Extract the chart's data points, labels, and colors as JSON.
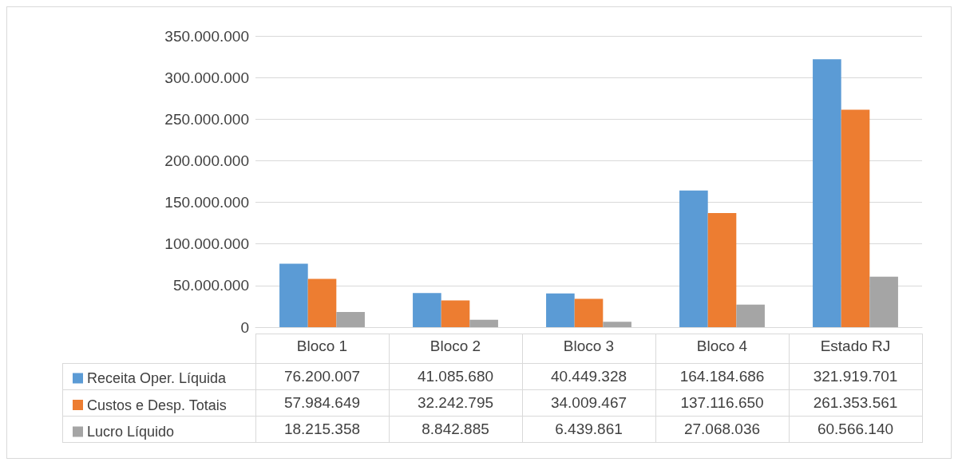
{
  "chart_data": {
    "type": "bar",
    "categories": [
      "Bloco 1",
      "Bloco 2",
      "Bloco 3",
      "Bloco 4",
      "Estado RJ"
    ],
    "series": [
      {
        "name": "Receita Oper. Líquida",
        "color": "#5b9bd5",
        "values": [
          76200007,
          41085680,
          40449328,
          164184686,
          321919701
        ],
        "value_labels": [
          "76.200.007",
          "41.085.680",
          "40.449.328",
          "164.184.686",
          "321.919.701"
        ]
      },
      {
        "name": "Custos e Desp. Totais",
        "color": "#ed7d31",
        "values": [
          57984649,
          32242795,
          34009467,
          137116650,
          261353561
        ],
        "value_labels": [
          "57.984.649",
          "32.242.795",
          "34.009.467",
          "137.116.650",
          "261.353.561"
        ]
      },
      {
        "name": "Lucro Líquido",
        "color": "#a5a5a5",
        "values": [
          18215358,
          8842885,
          6439861,
          27068036,
          60566140
        ],
        "value_labels": [
          "18.215.358",
          "8.842.885",
          "6.439.861",
          "27.068.036",
          "60.566.140"
        ]
      }
    ],
    "ylim": [
      0,
      350000000
    ],
    "yticks": [
      {
        "value": 0,
        "label": "0"
      },
      {
        "value": 50000000,
        "label": "50.000.000"
      },
      {
        "value": 100000000,
        "label": "100.000.000"
      },
      {
        "value": 150000000,
        "label": "150.000.000"
      },
      {
        "value": 200000000,
        "label": "200.000.000"
      },
      {
        "value": 250000000,
        "label": "250.000.000"
      },
      {
        "value": 300000000,
        "label": "300.000.000"
      },
      {
        "value": 350000000,
        "label": "350.000.000"
      }
    ],
    "grid": "y",
    "legend": "bottom left"
  }
}
